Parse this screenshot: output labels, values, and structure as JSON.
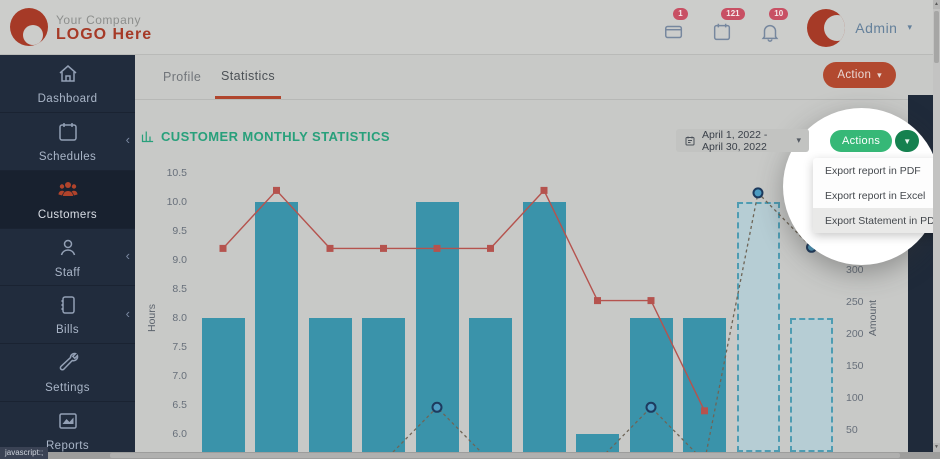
{
  "header": {
    "logo": {
      "line1": "Your Company",
      "line2": "LOGO Here"
    },
    "notifications": [
      {
        "icon": "envelope-icon",
        "badge": "1"
      },
      {
        "icon": "calendar-icon",
        "badge": "121"
      },
      {
        "icon": "bell-icon",
        "badge": "10"
      }
    ],
    "user": {
      "name": "Admin"
    }
  },
  "sidebar": {
    "items": [
      {
        "label": "Dashboard",
        "icon": "home-icon",
        "active": false,
        "has_submenu": false
      },
      {
        "label": "Schedules",
        "icon": "calendar-icon",
        "active": false,
        "has_submenu": true
      },
      {
        "label": "Customers",
        "icon": "users-icon",
        "active": true,
        "has_submenu": false
      },
      {
        "label": "Staff",
        "icon": "person-icon",
        "active": false,
        "has_submenu": true
      },
      {
        "label": "Bills",
        "icon": "ledger-icon",
        "active": false,
        "has_submenu": true
      },
      {
        "label": "Settings",
        "icon": "wrench-icon",
        "active": false,
        "has_submenu": false
      },
      {
        "label": "Reports",
        "icon": "report-chart-icon",
        "active": false,
        "has_submenu": false
      }
    ]
  },
  "tabs": [
    {
      "label": "Profile",
      "active": false
    },
    {
      "label": "Statistics",
      "active": true
    }
  ],
  "toolbar": {
    "action_label": "Action"
  },
  "panel": {
    "title": "CUSTOMER MONTHLY STATISTICS",
    "date_range": "April 1, 2022 - April 30, 2022",
    "actions_label": "Actions"
  },
  "dropdown": {
    "items": [
      {
        "label": "Export report in PDF",
        "hover": false
      },
      {
        "label": "Export report in Excel",
        "hover": false
      },
      {
        "label": "Export Statement in PDF",
        "hover": true
      }
    ]
  },
  "status_bar": "javascript:;",
  "colors": {
    "accent_red": "#b0452d",
    "accent_green": "#36b877",
    "title_green": "#28a07b",
    "bar_teal": "#3a93aa",
    "line_red": "#b5534e",
    "amount_line": "#6e6557",
    "badge_red": "#c85064",
    "sidebar_navy": "#212c3d"
  },
  "chart_data": {
    "type": "bar+line",
    "title": "CUSTOMER MONTHLY STATISTICS",
    "x_axis": {
      "label": "",
      "tick_labels_visible": false,
      "num_categories": 12
    },
    "left_axis": {
      "label": "Hours",
      "ticks": [
        "10.5",
        "10.0",
        "9.5",
        "9.0",
        "8.5",
        "8.0",
        "7.5",
        "7.0",
        "6.5",
        "6.0"
      ]
    },
    "right_axis": {
      "label": "Amount",
      "ticks": [
        "350",
        "300",
        "250",
        "200",
        "150",
        "100",
        "50"
      ]
    },
    "series": [
      {
        "name": "hours-bars",
        "type": "bar",
        "axis": "left",
        "color": "#3a93aa",
        "values": [
          8,
          10,
          8,
          8,
          10,
          8,
          10,
          6,
          8,
          8,
          10,
          8
        ],
        "dashed": [
          false,
          false,
          false,
          false,
          false,
          false,
          false,
          false,
          false,
          false,
          true,
          true
        ]
      },
      {
        "name": "hours-line",
        "type": "line",
        "axis": "left",
        "color": "#b5534e",
        "marker": "square",
        "values": [
          9.2,
          10.2,
          9.2,
          9.2,
          9.2,
          9.2,
          10.2,
          8.3,
          8.3,
          6.4,
          null,
          null
        ]
      },
      {
        "name": "amount-line",
        "type": "dashed-line",
        "axis": "right",
        "color": "#6e6557",
        "marker": "circle",
        "values": [
          0,
          0,
          0,
          0,
          85,
          0,
          0,
          0,
          85,
          0,
          420,
          335
        ]
      }
    ],
    "grid": false,
    "legend_visible": false
  }
}
